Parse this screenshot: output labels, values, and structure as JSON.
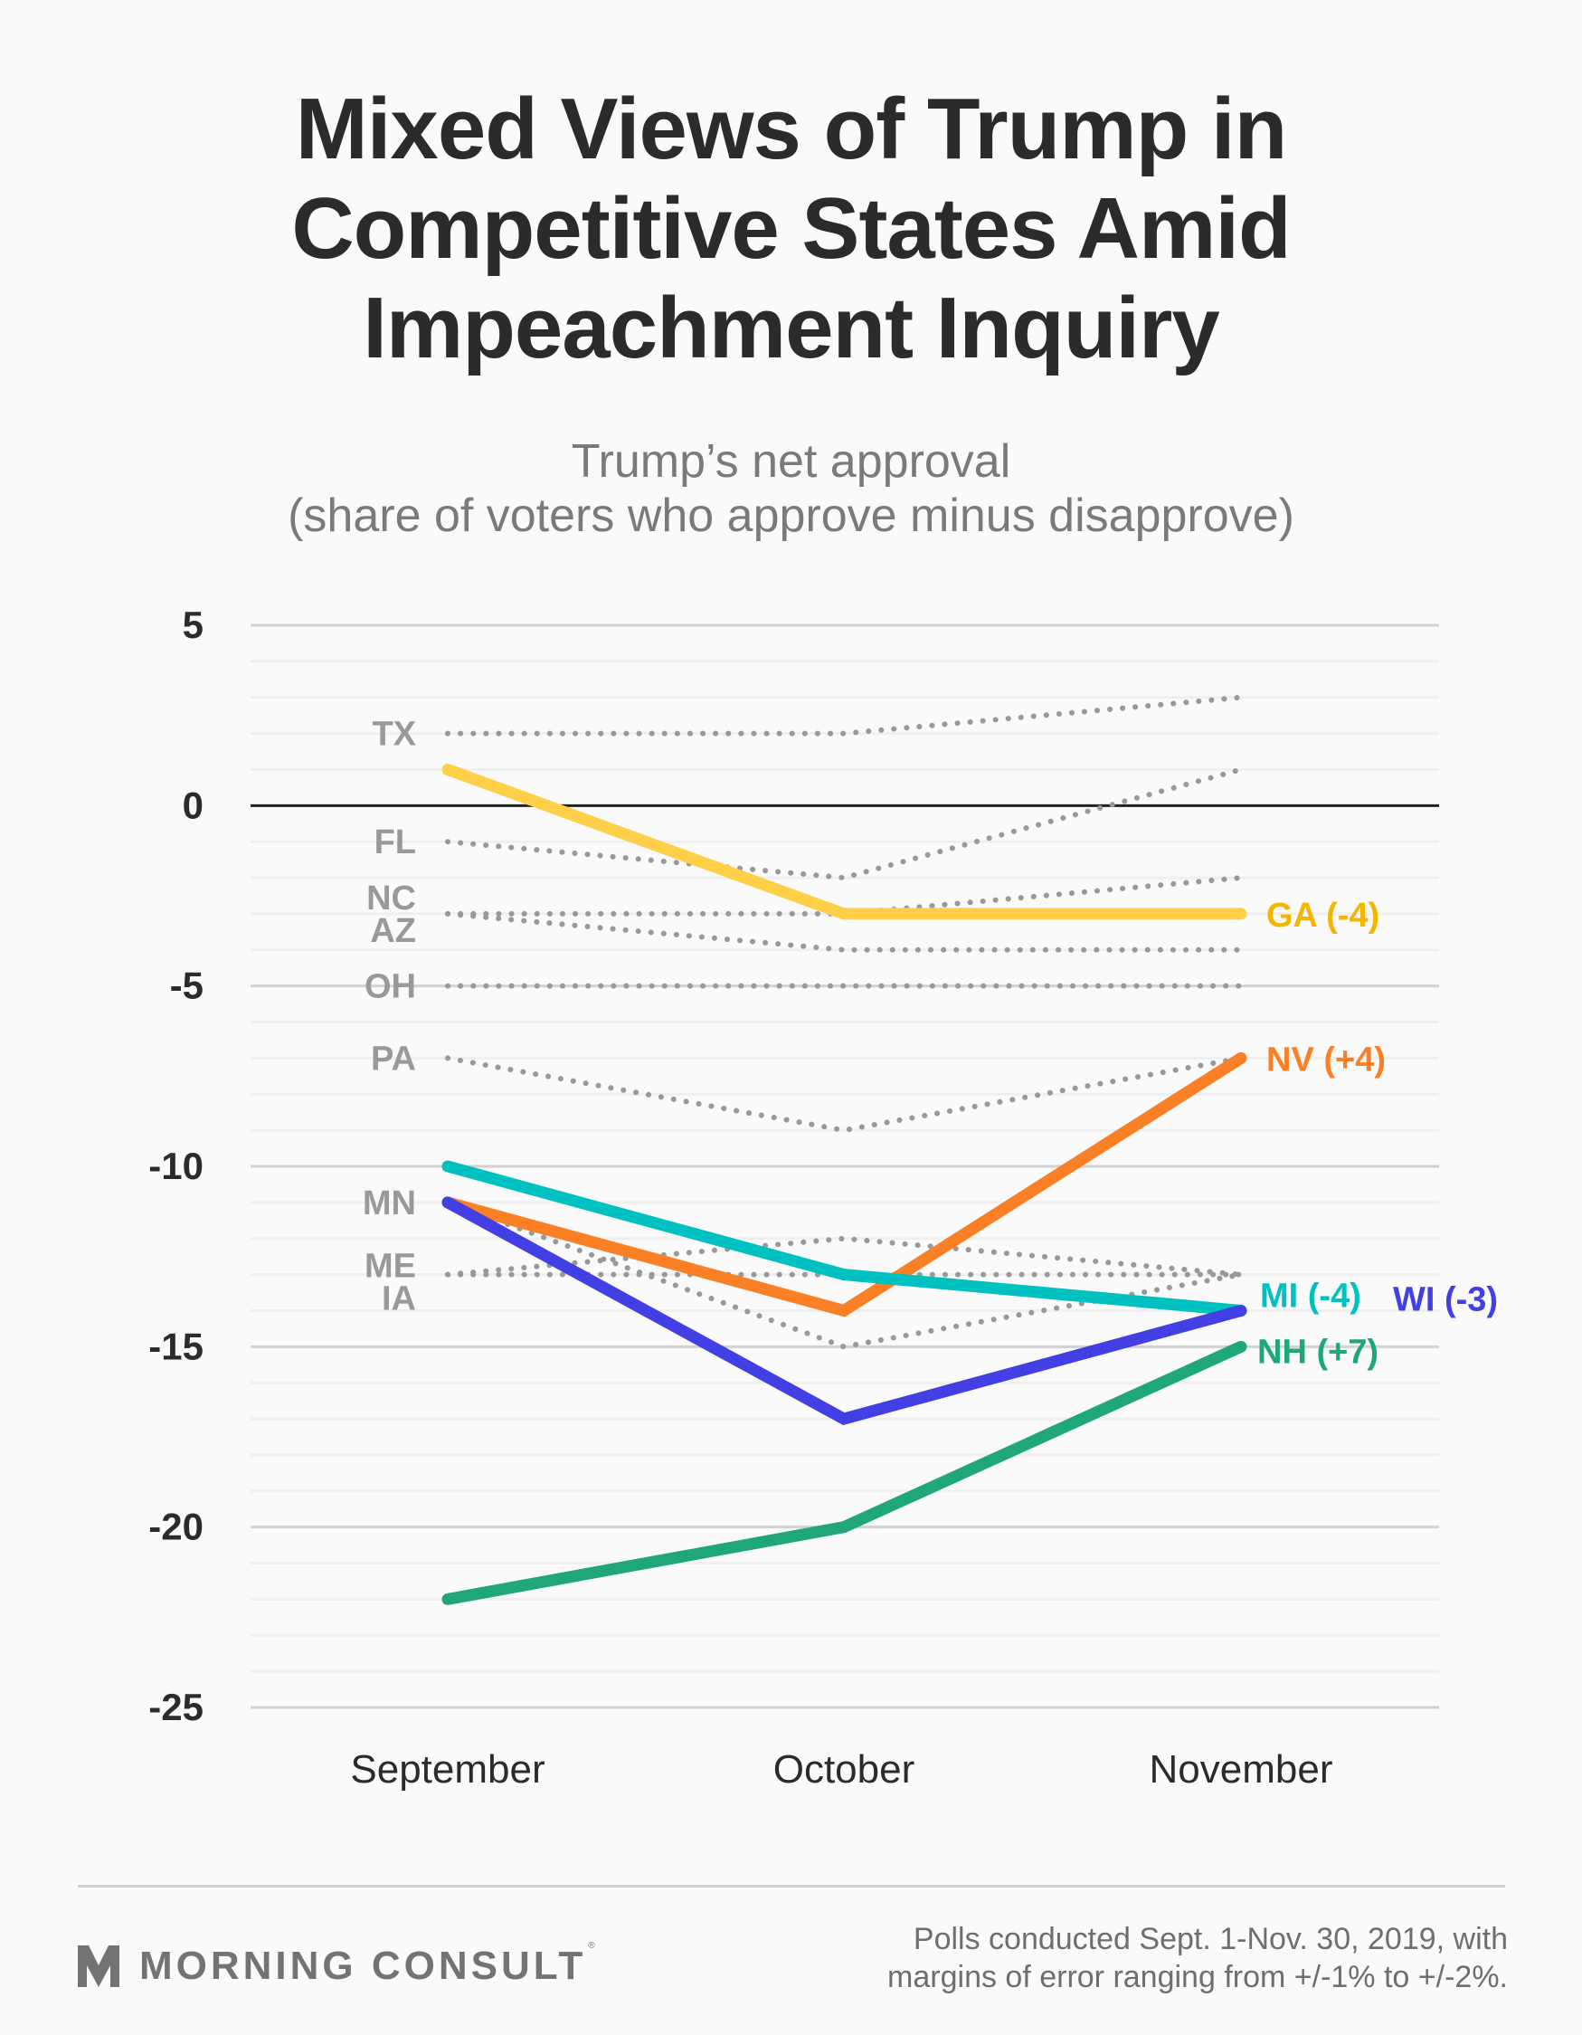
{
  "header": {
    "title_lines": [
      "Mixed Views of Trump in",
      "Competitive States Amid",
      "Impeachment Inquiry"
    ],
    "subtitle_lines": [
      "Trump’s net approval",
      "(share of voters who approve minus disapprove)"
    ]
  },
  "footer": {
    "brand": "MORNING CONSULT",
    "registered_mark": "®",
    "logo_icon": "morning-consult-m-icon",
    "note_lines": [
      "Polls conducted Sept. 1-Nov. 30, 2019, with",
      "margins of error ranging from +/-1% to +/-2%."
    ]
  },
  "chart_data": {
    "type": "line",
    "title": "Mixed Views of Trump in Competitive States Amid Impeachment Inquiry",
    "subtitle": "Trump’s net approval (share of voters who approve minus disapprove)",
    "xlabel": "",
    "ylabel": "",
    "categories": [
      "September",
      "October",
      "November"
    ],
    "ylim": [
      -25,
      5
    ],
    "yticks": [
      5,
      0,
      -5,
      -10,
      -15,
      -20,
      -25
    ],
    "minor_grid_step": 1,
    "grid": true,
    "zero_line": true,
    "highlighted_series": [
      {
        "name": "GA",
        "label": "GA (-4)",
        "color": "#ffcf48",
        "label_color": "#f4b400",
        "values": [
          1,
          -3,
          -3
        ]
      },
      {
        "name": "NV",
        "label": "NV (+4)",
        "color": "#fb7f24",
        "label_color": "#fb7f24",
        "values": [
          -11,
          -14,
          -7
        ]
      },
      {
        "name": "MI",
        "label": "MI (-4)",
        "color": "#00c1c1",
        "label_color": "#00c1c1",
        "values": [
          -10,
          -13,
          -14
        ]
      },
      {
        "name": "WI",
        "label": "WI (-3)",
        "color": "#4240e4",
        "label_color": "#4240e4",
        "values": [
          -11,
          -17,
          -14
        ]
      },
      {
        "name": "NH",
        "label": "NH (+7)",
        "color": "#1fa67a",
        "label_color": "#1fa67a",
        "values": [
          -22,
          -20,
          -15
        ]
      }
    ],
    "background_series": [
      {
        "name": "TX",
        "values": [
          2,
          2,
          3
        ]
      },
      {
        "name": "FL",
        "values": [
          -1,
          -2,
          1
        ]
      },
      {
        "name": "NC",
        "values": [
          -3,
          -3,
          -2
        ]
      },
      {
        "name": "AZ",
        "values": [
          -3,
          -4,
          -4
        ]
      },
      {
        "name": "OH",
        "values": [
          -5,
          -5,
          -5
        ]
      },
      {
        "name": "PA",
        "values": [
          -7,
          -9,
          -7
        ]
      },
      {
        "name": "MN",
        "values": [
          -11,
          -15,
          -13
        ]
      },
      {
        "name": "ME",
        "values": [
          -13,
          -12,
          -13
        ]
      },
      {
        "name": "IA",
        "values": [
          -13,
          -13,
          -13
        ]
      }
    ],
    "background_color": "#999999"
  }
}
